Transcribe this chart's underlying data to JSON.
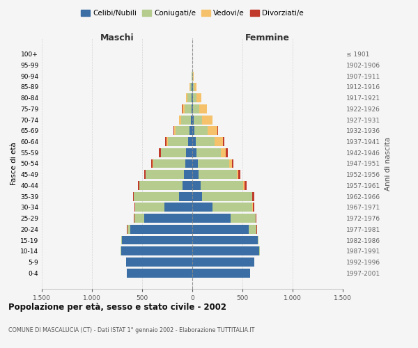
{
  "age_groups": [
    "0-4",
    "5-9",
    "10-14",
    "15-19",
    "20-24",
    "25-29",
    "30-34",
    "35-39",
    "40-44",
    "45-49",
    "50-54",
    "55-59",
    "60-64",
    "65-69",
    "70-74",
    "75-79",
    "80-84",
    "85-89",
    "90-94",
    "95-99",
    "100+"
  ],
  "birth_years": [
    "1997-2001",
    "1992-1996",
    "1987-1991",
    "1982-1986",
    "1977-1981",
    "1972-1976",
    "1967-1971",
    "1962-1966",
    "1957-1961",
    "1952-1956",
    "1947-1951",
    "1942-1946",
    "1937-1941",
    "1932-1936",
    "1927-1931",
    "1922-1926",
    "1917-1921",
    "1912-1916",
    "1907-1911",
    "1902-1906",
    "≤ 1901"
  ],
  "males_celibi": [
    650,
    660,
    710,
    700,
    620,
    480,
    280,
    130,
    95,
    80,
    70,
    60,
    45,
    25,
    12,
    10,
    8,
    5,
    2,
    0,
    0
  ],
  "males_coniugati": [
    0,
    0,
    5,
    10,
    28,
    95,
    290,
    450,
    430,
    385,
    320,
    250,
    200,
    140,
    98,
    68,
    40,
    18,
    5,
    2,
    0
  ],
  "males_vedovi": [
    0,
    0,
    0,
    0,
    0,
    1,
    1,
    2,
    2,
    3,
    4,
    5,
    10,
    15,
    20,
    22,
    15,
    8,
    3,
    1,
    0
  ],
  "males_divorziati": [
    0,
    0,
    0,
    0,
    2,
    5,
    8,
    10,
    12,
    12,
    14,
    18,
    18,
    8,
    4,
    2,
    0,
    0,
    0,
    0,
    0
  ],
  "females_nubili": [
    575,
    620,
    670,
    650,
    560,
    380,
    200,
    95,
    80,
    65,
    55,
    45,
    35,
    20,
    12,
    10,
    8,
    5,
    2,
    0,
    0
  ],
  "females_coniugate": [
    0,
    0,
    5,
    10,
    78,
    250,
    400,
    500,
    430,
    380,
    310,
    240,
    190,
    130,
    88,
    58,
    35,
    15,
    5,
    2,
    0
  ],
  "females_vedove": [
    0,
    0,
    0,
    0,
    1,
    2,
    3,
    5,
    10,
    15,
    28,
    50,
    78,
    100,
    98,
    78,
    45,
    20,
    5,
    1,
    0
  ],
  "females_divorziate": [
    0,
    0,
    0,
    2,
    5,
    10,
    15,
    18,
    20,
    18,
    18,
    20,
    18,
    8,
    4,
    2,
    0,
    0,
    0,
    0,
    0
  ],
  "colors": {
    "celibi_nubili": "#3A6EA5",
    "coniugati": "#B5CC8E",
    "vedovi": "#F5C26B",
    "divorziati": "#C0392B"
  },
  "xlim": [
    -1500,
    1500
  ],
  "xticks": [
    -1500,
    -1000,
    -500,
    0,
    500,
    1000,
    1500
  ],
  "xticklabels": [
    "1.500",
    "1.000",
    "500",
    "0",
    "500",
    "1.000",
    "1.500"
  ],
  "title": "Popolazione per età, sesso e stato civile - 2002",
  "subtitle": "COMUNE DI MASCALUCIA (CT) - Dati ISTAT 1° gennaio 2002 - Elaborazione TUTTITALIA.IT",
  "ylabel_left": "Fasce di età",
  "ylabel_right": "Anni di nascita",
  "label_maschi": "Maschi",
  "label_femmine": "Femmine",
  "legend_labels": [
    "Celibi/Nubili",
    "Coniugati/e",
    "Vedovi/e",
    "Divorziati/e"
  ],
  "bar_height": 0.82,
  "background_color": "#f5f5f5",
  "grid_color": "#cccccc"
}
